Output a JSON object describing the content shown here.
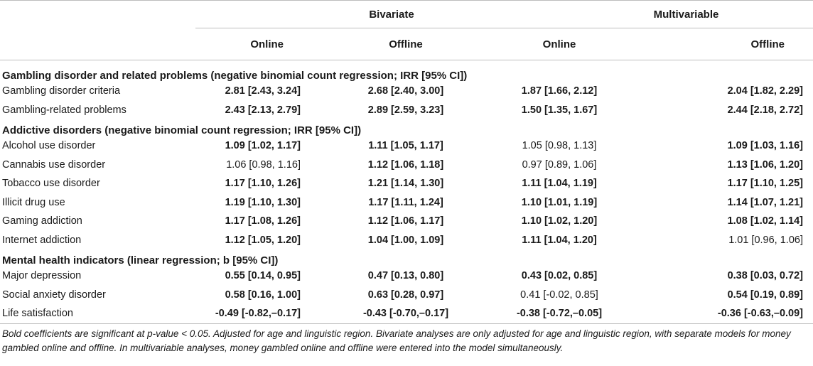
{
  "headers": {
    "bivariate": "Bivariate",
    "multivariable": "Multivariable",
    "online": "Online",
    "offline": "Offline"
  },
  "sections": [
    {
      "title": "Gambling disorder and related problems (negative binomial count regression; IRR [95% CI])",
      "rows": [
        {
          "label": "Gambling disorder criteria",
          "cells": [
            {
              "v": "2.81 [2.43, 3.24]",
              "bold": true
            },
            {
              "v": "2.68 [2.40, 3.00]",
              "bold": true
            },
            {
              "v": "1.87 [1.66, 2.12]",
              "bold": true
            },
            {
              "v": "2.04 [1.82, 2.29]",
              "bold": true
            }
          ]
        },
        {
          "label": "Gambling-related problems",
          "cells": [
            {
              "v": "2.43 [2.13, 2.79]",
              "bold": true
            },
            {
              "v": "2.89 [2.59, 3.23]",
              "bold": true
            },
            {
              "v": "1.50 [1.35, 1.67]",
              "bold": true
            },
            {
              "v": "2.44 [2.18, 2.72]",
              "bold": true
            }
          ]
        }
      ]
    },
    {
      "title": "Addictive disorders (negative binomial count regression; IRR [95% CI])",
      "rows": [
        {
          "label": "Alcohol use disorder",
          "cells": [
            {
              "v": "1.09 [1.02, 1.17]",
              "bold": true
            },
            {
              "v": "1.11 [1.05, 1.17]",
              "bold": true
            },
            {
              "v": "1.05 [0.98, 1.13]",
              "bold": false
            },
            {
              "v": "1.09 [1.03, 1.16]",
              "bold": true
            }
          ]
        },
        {
          "label": "Cannabis use disorder",
          "cells": [
            {
              "v": "1.06 [0.98, 1.16]",
              "bold": false
            },
            {
              "v": "1.12 [1.06, 1.18]",
              "bold": true
            },
            {
              "v": "0.97 [0.89, 1.06]",
              "bold": false
            },
            {
              "v": "1.13 [1.06, 1.20]",
              "bold": true
            }
          ]
        },
        {
          "label": "Tobacco use disorder",
          "cells": [
            {
              "v": "1.17 [1.10, 1.26]",
              "bold": true
            },
            {
              "v": "1.21 [1.14, 1.30]",
              "bold": true
            },
            {
              "v": "1.11 [1.04, 1.19]",
              "bold": true
            },
            {
              "v": "1.17 [1.10, 1.25]",
              "bold": true
            }
          ]
        },
        {
          "label": "Illicit drug use",
          "cells": [
            {
              "v": "1.19 [1.10, 1.30]",
              "bold": true
            },
            {
              "v": "1.17 [1.11, 1.24]",
              "bold": true
            },
            {
              "v": "1.10 [1.01, 1.19]",
              "bold": true
            },
            {
              "v": "1.14 [1.07, 1.21]",
              "bold": true
            }
          ]
        },
        {
          "label": "Gaming addiction",
          "cells": [
            {
              "v": "1.17 [1.08, 1.26]",
              "bold": true
            },
            {
              "v": "1.12 [1.06, 1.17]",
              "bold": true
            },
            {
              "v": "1.10 [1.02, 1.20]",
              "bold": true
            },
            {
              "v": "1.08 [1.02, 1.14]",
              "bold": true
            }
          ]
        },
        {
          "label": "Internet addiction",
          "cells": [
            {
              "v": "1.12 [1.05, 1.20]",
              "bold": true
            },
            {
              "v": "1.04 [1.00, 1.09]",
              "bold": true
            },
            {
              "v": "1.11 [1.04, 1.20]",
              "bold": true
            },
            {
              "v": "1.01 [0.96, 1.06]",
              "bold": false
            }
          ]
        }
      ]
    },
    {
      "title": "Mental health indicators (linear regression; b [95% CI])",
      "rows": [
        {
          "label": "Major depression",
          "cells": [
            {
              "v": "0.55 [0.14, 0.95]",
              "bold": true
            },
            {
              "v": "0.47 [0.13, 0.80]",
              "bold": true
            },
            {
              "v": "0.43 [0.02, 0.85]",
              "bold": true
            },
            {
              "v": "0.38 [0.03, 0.72]",
              "bold": true
            }
          ]
        },
        {
          "label": "Social anxiety disorder",
          "cells": [
            {
              "v": "0.58 [0.16, 1.00]",
              "bold": true
            },
            {
              "v": "0.63 [0.28, 0.97]",
              "bold": true
            },
            {
              "v": "0.41 [-0.02, 0.85]",
              "bold": false
            },
            {
              "v": "0.54 [0.19, 0.89]",
              "bold": true
            }
          ]
        },
        {
          "label": "Life satisfaction",
          "cells": [
            {
              "v": "-0.49 [-0.82,–0.17]",
              "bold": true
            },
            {
              "v": "-0.43 [-0.70,–0.17]",
              "bold": true
            },
            {
              "v": "-0.38 [-0.72,–0.05]",
              "bold": true
            },
            {
              "v": "-0.36 [-0.63,–0.09]",
              "bold": true
            }
          ]
        }
      ]
    }
  ],
  "footnote": "Bold coefficients are significant at p-value < 0.05. Adjusted for age and linguistic region. Bivariate analyses are only adjusted for age and linguistic region, with separate models for money gambled online and offline. In multivariable analyses, money gambled online and offline were entered into the model simultaneously."
}
